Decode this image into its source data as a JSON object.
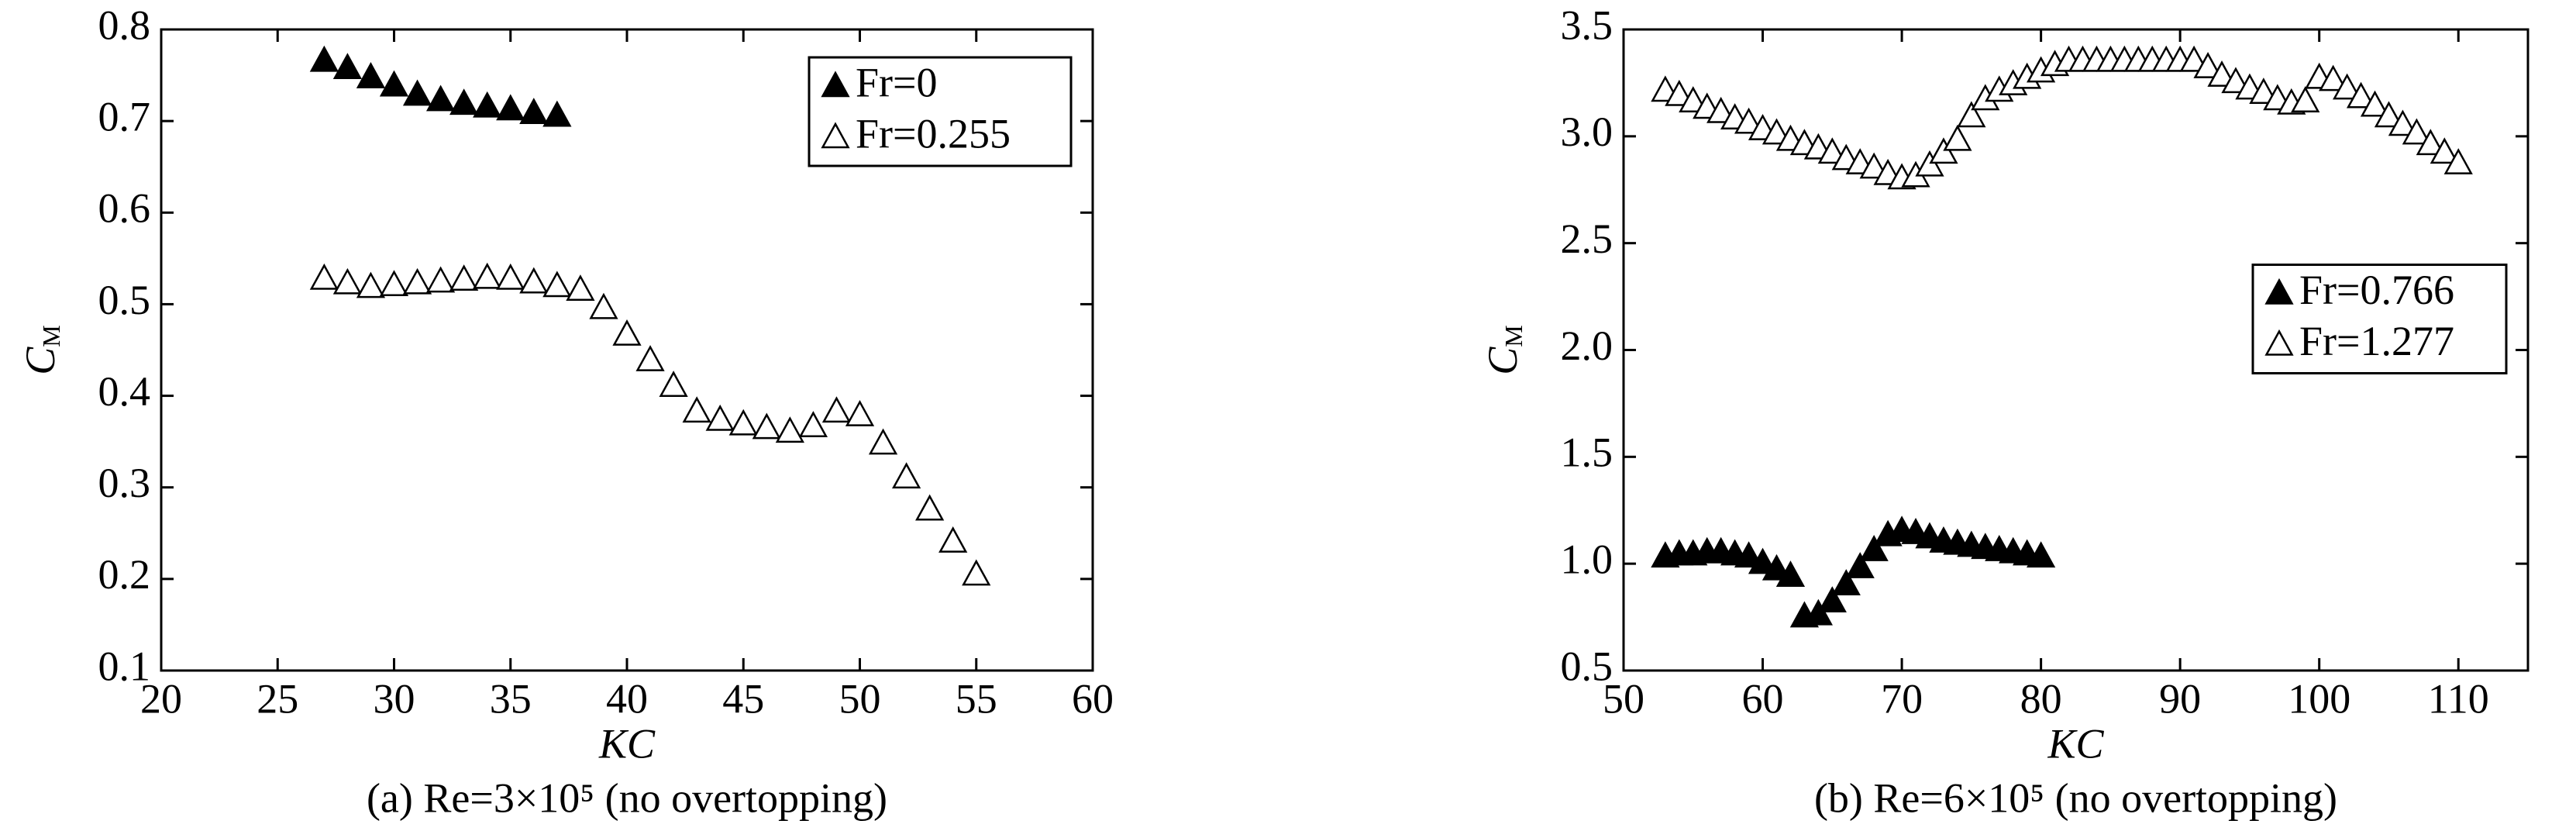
{
  "chart_data": [
    {
      "type": "scatter",
      "caption": "(a) Re=3×10⁵ (no overtopping)",
      "x_label": "KC",
      "y_label": {
        "text": "C",
        "subscript": "M"
      },
      "xlim": [
        20,
        60
      ],
      "ylim": [
        0.1,
        0.8
      ],
      "xticks": [
        20,
        25,
        30,
        35,
        40,
        45,
        50,
        55,
        60
      ],
      "yticks": [
        0.1,
        0.2,
        0.3,
        0.4,
        0.5,
        0.6,
        0.7,
        0.8
      ],
      "legend_position": "upper right",
      "series": [
        {
          "name": "Fr=0",
          "marker": "filled",
          "color": "#000000",
          "x": [
            27,
            28,
            29,
            30,
            31,
            32,
            33,
            34,
            35,
            36,
            37
          ],
          "values": [
            0.765,
            0.757,
            0.747,
            0.738,
            0.728,
            0.722,
            0.718,
            0.715,
            0.712,
            0.708,
            0.705
          ]
        },
        {
          "name": "Fr=0.255",
          "marker": "open",
          "color": "#000000",
          "x": [
            27,
            28,
            29,
            30,
            31,
            32,
            33,
            34,
            35,
            36,
            37,
            38,
            39,
            40,
            41,
            42,
            43,
            44,
            45,
            46,
            47,
            48,
            49,
            50,
            51,
            52,
            53,
            54,
            55
          ],
          "values": [
            0.527,
            0.522,
            0.518,
            0.52,
            0.522,
            0.524,
            0.526,
            0.528,
            0.527,
            0.523,
            0.519,
            0.515,
            0.495,
            0.466,
            0.438,
            0.41,
            0.382,
            0.373,
            0.368,
            0.364,
            0.36,
            0.366,
            0.382,
            0.378,
            0.347,
            0.31,
            0.275,
            0.24,
            0.204
          ]
        }
      ]
    },
    {
      "type": "scatter",
      "caption": "(b) Re=6×10⁵ (no overtopping)",
      "x_label": "KC",
      "y_label": {
        "text": "C",
        "subscript": "M"
      },
      "xlim": [
        50,
        115
      ],
      "ylim": [
        0.5,
        3.5
      ],
      "xticks": [
        50,
        60,
        70,
        80,
        90,
        100,
        110
      ],
      "yticks": [
        0.5,
        {
          "value": 1,
          "label": "1.0"
        },
        1.5,
        {
          "value": 2,
          "label": "2.0"
        },
        2.5,
        {
          "value": 3,
          "label": "3.0"
        },
        3.5
      ],
      "legend_position": "center right",
      "series": [
        {
          "name": "Fr=0.766",
          "marker": "filled",
          "color": "#000000",
          "x": [
            53,
            54,
            55,
            56,
            57,
            58,
            59,
            60,
            61,
            62,
            63,
            64,
            65,
            66,
            67,
            68,
            69,
            70,
            71,
            72,
            73,
            74,
            75,
            76,
            77,
            78,
            79,
            80
          ],
          "values": [
            1.03,
            1.04,
            1.04,
            1.05,
            1.05,
            1.04,
            1.03,
            1.0,
            0.97,
            0.94,
            0.75,
            0.76,
            0.82,
            0.9,
            0.98,
            1.06,
            1.13,
            1.15,
            1.14,
            1.12,
            1.1,
            1.09,
            1.08,
            1.07,
            1.06,
            1.05,
            1.04,
            1.03
          ]
        },
        {
          "name": "Fr=1.277",
          "marker": "open",
          "color": "#000000",
          "x": [
            53,
            54,
            55,
            56,
            57,
            58,
            59,
            60,
            61,
            62,
            63,
            64,
            65,
            66,
            67,
            68,
            69,
            70,
            71,
            72,
            73,
            74,
            75,
            76,
            77,
            78,
            79,
            80,
            81,
            82,
            83,
            84,
            85,
            86,
            87,
            88,
            89,
            90,
            91,
            92,
            93,
            94,
            95,
            96,
            97,
            98,
            99,
            100,
            101,
            102,
            103,
            104,
            105,
            106,
            107,
            108,
            109,
            110
          ],
          "values": [
            3.21,
            3.19,
            3.16,
            3.13,
            3.11,
            3.08,
            3.06,
            3.03,
            3.01,
            2.98,
            2.96,
            2.94,
            2.92,
            2.89,
            2.87,
            2.85,
            2.82,
            2.8,
            2.81,
            2.86,
            2.92,
            2.98,
            3.09,
            3.17,
            3.21,
            3.24,
            3.27,
            3.3,
            3.33,
            3.35,
            3.35,
            3.35,
            3.35,
            3.35,
            3.35,
            3.35,
            3.35,
            3.35,
            3.35,
            3.32,
            3.28,
            3.25,
            3.22,
            3.2,
            3.17,
            3.15,
            3.16,
            3.27,
            3.26,
            3.22,
            3.18,
            3.14,
            3.09,
            3.05,
            3.01,
            2.96,
            2.92,
            2.87
          ]
        }
      ]
    }
  ]
}
